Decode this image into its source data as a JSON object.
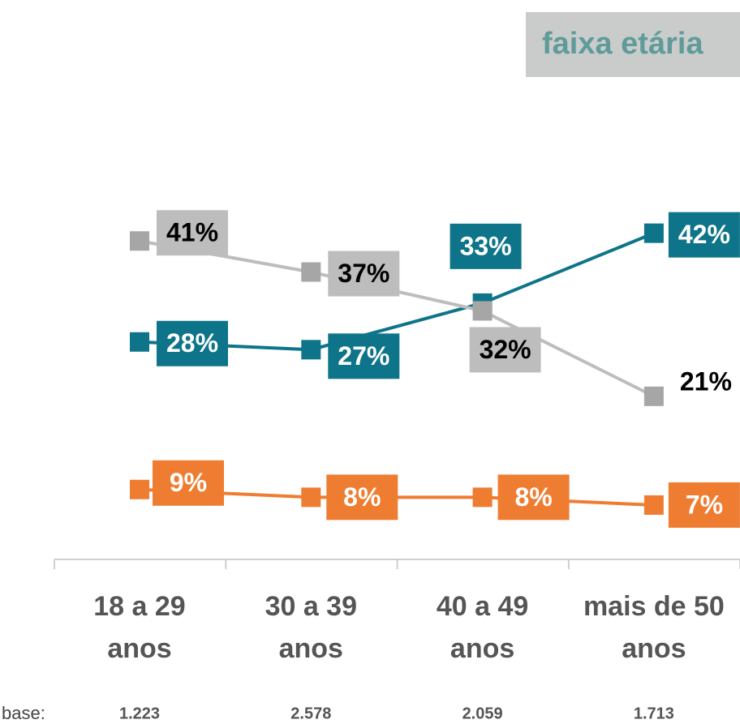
{
  "chart_data": {
    "type": "line",
    "title": "faixa etária",
    "categories": [
      [
        "18 a 29",
        "anos"
      ],
      [
        "30 a 39",
        "anos"
      ],
      [
        "40 a 49",
        "anos"
      ],
      [
        "mais de 50",
        "anos"
      ]
    ],
    "series": [
      {
        "color": "#0e7489",
        "values": [
          28,
          27,
          33,
          42
        ],
        "value_labels": [
          "28%",
          "27%",
          "33%",
          "42%"
        ]
      },
      {
        "color": "#bdbdbd",
        "values": [
          41,
          37,
          32,
          21
        ],
        "value_labels": [
          "41%",
          "37%",
          "32%",
          "21%"
        ]
      },
      {
        "color": "#ee7d31",
        "values": [
          9,
          8,
          8,
          7
        ],
        "value_labels": [
          "9%",
          "8%",
          "8%",
          "7%"
        ]
      }
    ],
    "ylim": [
      0,
      50
    ],
    "base": {
      "label": "base:",
      "values": [
        "1.223",
        "2.578",
        "2.059",
        "1.713"
      ]
    }
  }
}
